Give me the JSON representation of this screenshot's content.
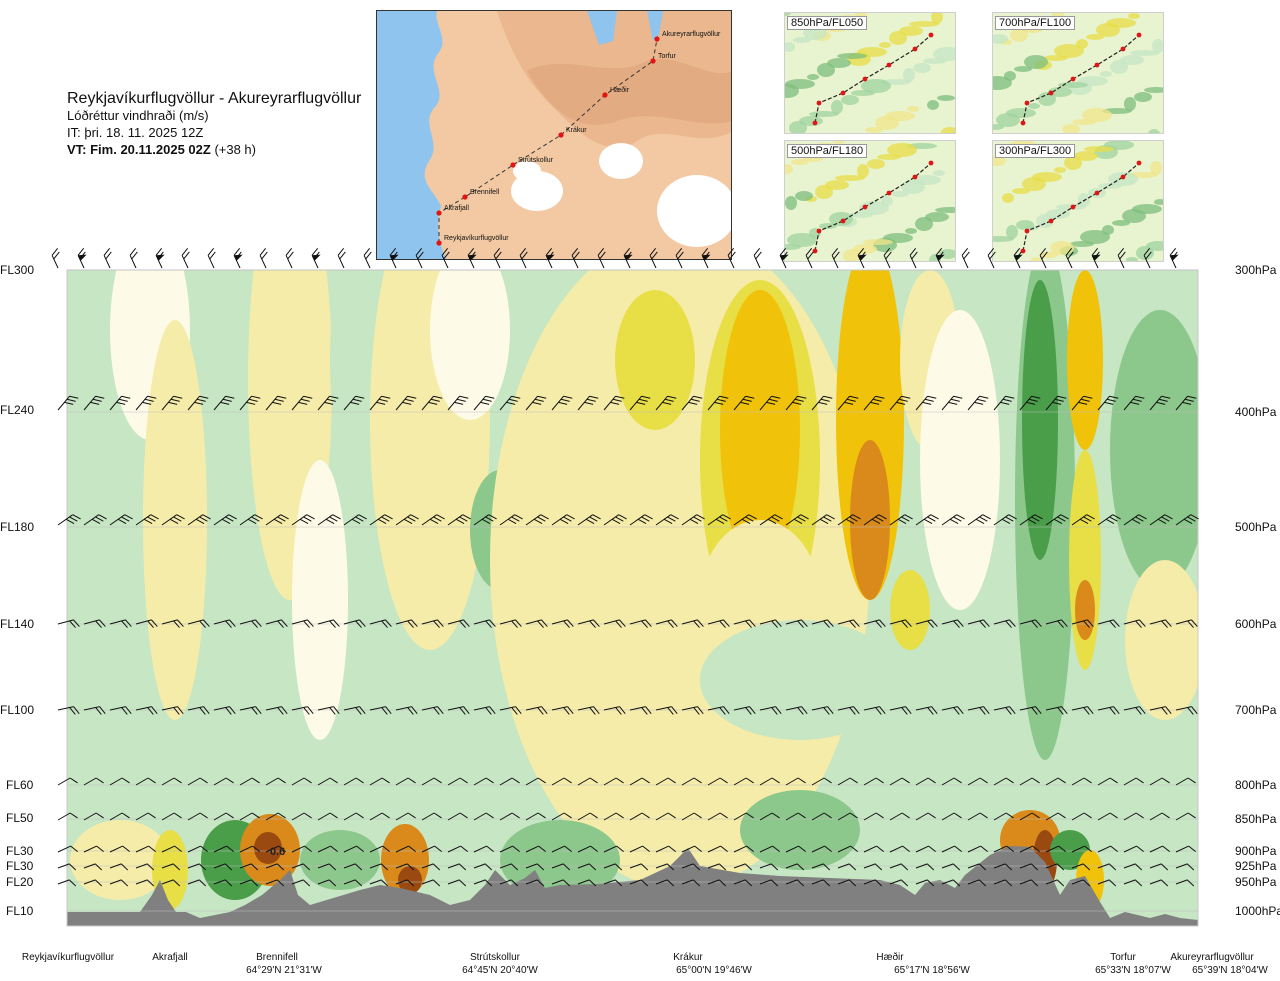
{
  "header": {
    "route": "Reykjavíkurflugvöllur - Akureyrarflugvöllur",
    "variable": "Lóðréttur vindhraði (m/s)",
    "issue_time": "IT: þri. 18. 11. 2025 12Z",
    "valid_time": "VT: Fim. 20.11.2025 02Z",
    "valid_offset": "(+38 h)"
  },
  "map": {
    "waypoints": [
      "Akureyrarflugvöllur",
      "Torfur",
      "Hæðir",
      "Krákur",
      "Strútskollur",
      "Brennifell",
      "Akrafjall",
      "Reykjavíkurflugvöllur"
    ]
  },
  "panels": [
    "850hPa/FL050",
    "700hPa/FL100",
    "500hPa/FL180",
    "300hPa/FL300"
  ],
  "chart_data": {
    "type": "heatmap",
    "title": "Lóðréttur vindhraði (m/s)",
    "left_axis_labels": [
      "FL300",
      "FL240",
      "FL180",
      "FL140",
      "FL100",
      "FL60",
      "FL50",
      "FL30",
      "FL30",
      "FL20",
      "FL10"
    ],
    "right_axis_labels": [
      "300hPa",
      "400hPa",
      "500hPa",
      "600hPa",
      "700hPa",
      "800hPa",
      "850hPa",
      "900hPa",
      "925hPa",
      "950hPa",
      "1000hPa"
    ],
    "pressure_levels_hpa": [
      300,
      400,
      500,
      600,
      700,
      800,
      850,
      900,
      925,
      950,
      1000
    ],
    "locations": [
      {
        "name": "Reykjavíkurflugvöllur",
        "coord": ""
      },
      {
        "name": "Akrafjall",
        "coord": ""
      },
      {
        "name": "Brennifell",
        "coord": "64°29'N 21°31'W"
      },
      {
        "name": "Strútskollur",
        "coord": "64°45'N 20°40'W"
      },
      {
        "name": "Krákur",
        "coord": "65°00'N 19°46'W"
      },
      {
        "name": "Hæðir",
        "coord": "65°17'N 18°56'W"
      },
      {
        "name": "Torfur",
        "coord": "65°33'N 18°07'W"
      },
      {
        "name": "Akureyrarflugvöllur",
        "coord": "65°39'N 18°04'W"
      }
    ],
    "annotations": [
      "0.6"
    ],
    "colors": {
      "strong_down": "#4a9e4a",
      "mod_down": "#8cc78c",
      "weak_down": "#c6e6c4",
      "near_zero": "#fdfbe8",
      "weak_up": "#f6ecaa",
      "mod_up": "#e8de45",
      "strong_up": "#f0c20a",
      "very_strong_up": "#d98a1a",
      "extreme_up": "#9a4a10",
      "terrain": "#808080"
    }
  }
}
